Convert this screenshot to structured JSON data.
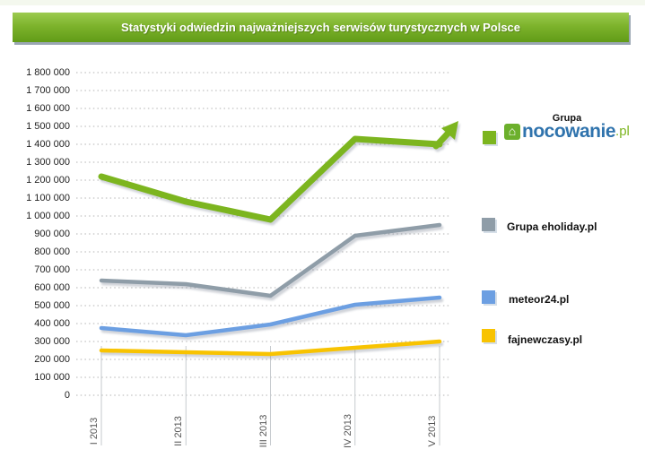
{
  "header": {
    "title": "Statystyki odwiedzin najważniejszych serwisów turystycznych w Polsce",
    "bar_color_top": "#9ccb4f",
    "bar_color_bottom": "#619b17"
  },
  "chart_data": {
    "type": "line",
    "title": "Statystyki odwiedzin najważniejszych serwisów turystycznych w Polsce",
    "categories": [
      "I 2013",
      "II 2013",
      "III 2013",
      "IV 2013",
      "V 2013"
    ],
    "series": [
      {
        "name": "Grupa nocowanie.pl",
        "color": "#7cb51f",
        "width": 7,
        "arrow": true,
        "values": [
          1220000,
          1080000,
          980000,
          1430000,
          1400000
        ]
      },
      {
        "name": "Grupa eholiday.pl",
        "color": "#8f9da8",
        "width": 4.5,
        "arrow": false,
        "values": [
          640000,
          620000,
          555000,
          890000,
          950000
        ]
      },
      {
        "name": "meteor24.pl",
        "color": "#6c9fe2",
        "width": 4.5,
        "arrow": false,
        "values": [
          375000,
          335000,
          395000,
          505000,
          545000
        ]
      },
      {
        "name": "fajnewczasy.pl",
        "color": "#f8c301",
        "width": 4.5,
        "arrow": false,
        "values": [
          250000,
          240000,
          230000,
          265000,
          300000
        ]
      }
    ],
    "ylim": [
      0,
      1800000
    ],
    "ytick_step": 100000,
    "y_tick_labels": [
      "0",
      "100 000",
      "200 000",
      "300 000",
      "400 000",
      "500 000",
      "600 000",
      "700 000",
      "800 000",
      "900 000",
      "1 000 000",
      "1 100 000",
      "1 200 000",
      "1 300 000",
      "1 400 000",
      "1 500 000",
      "1 600 000",
      "1 700 000",
      "1 800 000"
    ],
    "xlabel": "",
    "ylabel": "",
    "grid": "dotted-horizontal",
    "legend_position": "right"
  },
  "legend": {
    "group_title": "Grupa",
    "logo": {
      "icon": "house-icon",
      "glyph": "⌂",
      "text": "nocowanie",
      "tld": ".pl",
      "text_color": "#2f73ad",
      "tld_color": "#7cb51f"
    },
    "entries": [
      {
        "label": "Grupa eholiday.pl"
      },
      {
        "label": "meteor24.pl"
      },
      {
        "label": "fajnewczasy.pl"
      }
    ]
  }
}
